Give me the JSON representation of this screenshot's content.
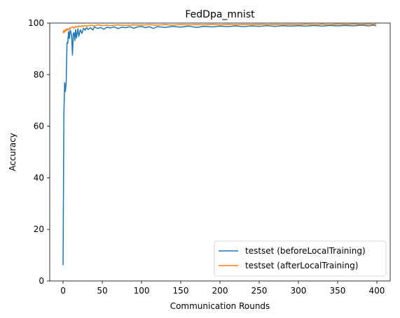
{
  "chart_data": {
    "type": "line",
    "title": "FedDpa_mnist",
    "xlabel": "Communication Rounds",
    "ylabel": "Accuracy",
    "xlim": [
      -17,
      417
    ],
    "ylim": [
      0,
      100
    ],
    "xticks": [
      0,
      50,
      100,
      150,
      200,
      250,
      300,
      350,
      400
    ],
    "yticks": [
      0,
      20,
      40,
      60,
      80,
      100
    ],
    "grid": false,
    "legend_position": "bottom-right",
    "series": [
      {
        "name": "testset (beforeLocalTraining)",
        "color": "#1f77b4",
        "points": [
          [
            0,
            6.1
          ],
          [
            1,
            64.0
          ],
          [
            2,
            76.9
          ],
          [
            3,
            73.5
          ],
          [
            4,
            77.0
          ],
          [
            5,
            92.4
          ],
          [
            6,
            92.2
          ],
          [
            7,
            96.7
          ],
          [
            8,
            94.0
          ],
          [
            9,
            97.3
          ],
          [
            10,
            96.5
          ],
          [
            11,
            94.6
          ],
          [
            12,
            87.6
          ],
          [
            13,
            95.9
          ],
          [
            14,
            96.3
          ],
          [
            15,
            93.2
          ],
          [
            16,
            97.5
          ],
          [
            17,
            94.2
          ],
          [
            18,
            96.1
          ],
          [
            19,
            97.8
          ],
          [
            20,
            94.8
          ],
          [
            22,
            97.4
          ],
          [
            24,
            96.0
          ],
          [
            26,
            98.0
          ],
          [
            28,
            97.2
          ],
          [
            30,
            98.3
          ],
          [
            32,
            97.5
          ],
          [
            35,
            98.2
          ],
          [
            38,
            97.3
          ],
          [
            40,
            98.5
          ],
          [
            44,
            97.9
          ],
          [
            48,
            98.3
          ],
          [
            52,
            97.6
          ],
          [
            56,
            98.4
          ],
          [
            60,
            98.1
          ],
          [
            65,
            98.5
          ],
          [
            70,
            97.9
          ],
          [
            75,
            98.4
          ],
          [
            80,
            98.2
          ],
          [
            85,
            98.6
          ],
          [
            90,
            98.0
          ],
          [
            95,
            98.5
          ],
          [
            100,
            98.7
          ],
          [
            105,
            98.2
          ],
          [
            110,
            98.6
          ],
          [
            115,
            97.9
          ],
          [
            120,
            98.6
          ],
          [
            130,
            98.3
          ],
          [
            140,
            98.7
          ],
          [
            150,
            98.4
          ],
          [
            160,
            98.8
          ],
          [
            170,
            98.3
          ],
          [
            180,
            98.7
          ],
          [
            190,
            98.5
          ],
          [
            200,
            98.8
          ],
          [
            210,
            98.6
          ],
          [
            220,
            98.9
          ],
          [
            230,
            98.6
          ],
          [
            240,
            98.9
          ],
          [
            250,
            98.7
          ],
          [
            260,
            99.0
          ],
          [
            270,
            98.7
          ],
          [
            280,
            99.0
          ],
          [
            290,
            98.8
          ],
          [
            300,
            99.0
          ],
          [
            310,
            98.8
          ],
          [
            320,
            99.1
          ],
          [
            330,
            98.8
          ],
          [
            340,
            99.1
          ],
          [
            350,
            98.9
          ],
          [
            360,
            99.1
          ],
          [
            370,
            98.9
          ],
          [
            380,
            99.2
          ],
          [
            390,
            98.9
          ],
          [
            395,
            99.2
          ],
          [
            399,
            99.0
          ]
        ]
      },
      {
        "name": "testset (afterLocalTraining)",
        "color": "#ff7f0e",
        "points": [
          [
            0,
            96.1
          ],
          [
            1,
            97.2
          ],
          [
            2,
            96.4
          ],
          [
            3,
            97.5
          ],
          [
            4,
            97.0
          ],
          [
            5,
            97.8
          ],
          [
            6,
            97.3
          ],
          [
            7,
            97.6
          ],
          [
            8,
            98.1
          ],
          [
            9,
            97.8
          ],
          [
            10,
            98.2
          ],
          [
            12,
            98.5
          ],
          [
            14,
            98.0
          ],
          [
            16,
            98.7
          ],
          [
            18,
            98.4
          ],
          [
            20,
            98.9
          ],
          [
            22,
            98.5
          ],
          [
            24,
            99.0
          ],
          [
            26,
            98.7
          ],
          [
            28,
            99.1
          ],
          [
            30,
            98.8
          ],
          [
            35,
            99.2
          ],
          [
            40,
            98.9
          ],
          [
            45,
            99.3
          ],
          [
            50,
            99.0
          ],
          [
            55,
            99.2
          ],
          [
            60,
            99.0
          ],
          [
            70,
            99.3
          ],
          [
            80,
            99.1
          ],
          [
            90,
            99.3
          ],
          [
            100,
            99.2
          ],
          [
            110,
            99.4
          ],
          [
            120,
            99.2
          ],
          [
            130,
            99.4
          ],
          [
            140,
            99.2
          ],
          [
            150,
            99.4
          ],
          [
            160,
            99.3
          ],
          [
            170,
            99.4
          ],
          [
            180,
            99.3
          ],
          [
            190,
            99.5
          ],
          [
            200,
            99.3
          ],
          [
            210,
            99.5
          ],
          [
            220,
            99.3
          ],
          [
            230,
            99.5
          ],
          [
            240,
            99.4
          ],
          [
            250,
            99.5
          ],
          [
            260,
            99.4
          ],
          [
            270,
            99.5
          ],
          [
            280,
            99.4
          ],
          [
            290,
            99.5
          ],
          [
            300,
            99.4
          ],
          [
            310,
            99.6
          ],
          [
            320,
            99.4
          ],
          [
            330,
            99.6
          ],
          [
            340,
            99.4
          ],
          [
            350,
            99.6
          ],
          [
            360,
            99.5
          ],
          [
            370,
            99.6
          ],
          [
            380,
            99.5
          ],
          [
            390,
            99.6
          ],
          [
            395,
            99.5
          ],
          [
            399,
            99.6
          ]
        ]
      }
    ]
  }
}
